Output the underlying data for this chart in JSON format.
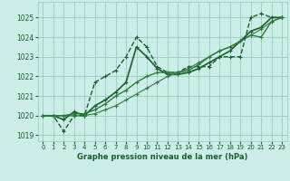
{
  "title": "Graphe pression niveau de la mer (hPa)",
  "bg_color": "#cceee8",
  "grid_color": "#99ccbb",
  "line_color1": "#1a5c2a",
  "line_color2": "#2d7a3a",
  "xlim": [
    -0.5,
    23.5
  ],
  "ylim": [
    1018.7,
    1025.8
  ],
  "yticks": [
    1019,
    1020,
    1021,
    1022,
    1023,
    1024,
    1025
  ],
  "xticks": [
    0,
    1,
    2,
    3,
    4,
    5,
    6,
    7,
    8,
    9,
    10,
    11,
    12,
    13,
    14,
    15,
    16,
    17,
    18,
    19,
    20,
    21,
    22,
    23
  ],
  "series": [
    {
      "x": [
        0,
        1,
        2,
        3,
        4,
        5,
        6,
        7,
        8,
        9,
        10,
        11,
        12,
        13,
        14,
        15,
        16,
        17,
        18,
        19,
        20,
        21,
        22,
        23
      ],
      "y": [
        1020.0,
        1020.0,
        1019.2,
        1020.0,
        1020.0,
        1021.7,
        1022.0,
        1022.3,
        1023.0,
        1024.0,
        1023.5,
        1022.5,
        1022.2,
        1022.2,
        1022.5,
        1022.5,
        1022.5,
        1023.0,
        1023.0,
        1023.0,
        1025.0,
        1025.2,
        1025.0,
        1025.0
      ],
      "color": "#1a5c2a",
      "lw": 1.0,
      "ls": "--",
      "marker": "+"
    },
    {
      "x": [
        0,
        1,
        2,
        3,
        4,
        5,
        6,
        7,
        8,
        9,
        10,
        11,
        12,
        13,
        14,
        15,
        16,
        17,
        18,
        19,
        20,
        21,
        22,
        23
      ],
      "y": [
        1020.0,
        1020.0,
        1019.8,
        1020.2,
        1020.0,
        1020.5,
        1020.8,
        1021.2,
        1021.7,
        1023.5,
        1023.0,
        1022.4,
        1022.1,
        1022.1,
        1022.2,
        1022.4,
        1022.7,
        1023.0,
        1023.3,
        1023.8,
        1024.3,
        1024.5,
        1025.0,
        1025.0
      ],
      "color": "#1a5c2a",
      "lw": 1.2,
      "ls": "-",
      "marker": "+"
    },
    {
      "x": [
        0,
        1,
        2,
        3,
        4,
        5,
        6,
        7,
        8,
        9,
        10,
        11,
        12,
        13,
        14,
        15,
        16,
        17,
        18,
        19,
        20,
        21,
        22,
        23
      ],
      "y": [
        1020.0,
        1020.0,
        1020.0,
        1020.1,
        1020.1,
        1020.3,
        1020.6,
        1021.0,
        1021.3,
        1021.7,
        1022.0,
        1022.2,
        1022.2,
        1022.2,
        1022.3,
        1022.6,
        1023.0,
        1023.3,
        1023.5,
        1023.8,
        1024.1,
        1024.0,
        1024.8,
        1025.0
      ],
      "color": "#2d7a3a",
      "lw": 1.0,
      "ls": "-",
      "marker": "+"
    },
    {
      "x": [
        0,
        1,
        2,
        3,
        4,
        5,
        6,
        7,
        8,
        9,
        10,
        11,
        12,
        13,
        14,
        15,
        16,
        17,
        18,
        19,
        20,
        21,
        22,
        23
      ],
      "y": [
        1020.0,
        1020.0,
        1020.0,
        1020.0,
        1020.0,
        1020.1,
        1020.3,
        1020.5,
        1020.8,
        1021.1,
        1021.4,
        1021.7,
        1022.0,
        1022.2,
        1022.4,
        1022.7,
        1023.0,
        1023.3,
        1023.5,
        1023.8,
        1024.1,
        1024.4,
        1024.8,
        1025.0
      ],
      "color": "#2d7a3a",
      "lw": 0.8,
      "ls": "-",
      "marker": "+"
    }
  ]
}
